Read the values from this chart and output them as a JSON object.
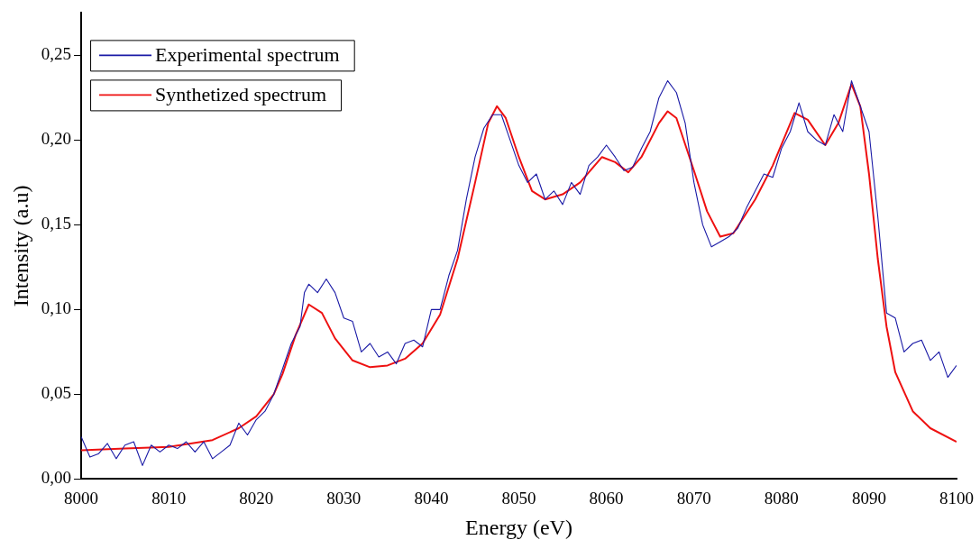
{
  "chart_data": {
    "type": "line",
    "xlabel": "Energy (eV)",
    "ylabel": "Intensity (a.u)",
    "xlim": [
      8000,
      8100
    ],
    "xticks": [
      8000,
      8010,
      8020,
      8030,
      8040,
      8050,
      8060,
      8070,
      8080,
      8090,
      8100
    ],
    "ylim": [
      0,
      0.275
    ],
    "yticks": [
      {
        "value": 0,
        "label": "0,00"
      },
      {
        "value": 0.05,
        "label": "0,05"
      },
      {
        "value": 0.1,
        "label": "0,10"
      },
      {
        "value": 0.15,
        "label": "0,15"
      },
      {
        "value": 0.2,
        "label": "0,20"
      },
      {
        "value": 0.25,
        "label": "0,25"
      }
    ],
    "grid": false,
    "legend": "top left",
    "marker": "none",
    "line_style": "solid",
    "series": [
      {
        "name": "Experimental spectrum",
        "color": "#1a1aa6",
        "x": [
          8000,
          8001,
          8002,
          8003,
          8004,
          8005,
          8006,
          8007,
          8008,
          8009,
          8010,
          8011,
          8012,
          8013,
          8014,
          8015,
          8016,
          8017,
          8018,
          8019,
          8020,
          8021,
          8022,
          8023,
          8024,
          8025,
          8025.5,
          8026,
          8027,
          8028,
          8029,
          8030,
          8031,
          8032,
          8033,
          8034,
          8035,
          8036,
          8037,
          8038,
          8039,
          8040,
          8041,
          8042,
          8043,
          8044,
          8045,
          8046,
          8047,
          8048,
          8049,
          8050,
          8051,
          8052,
          8053,
          8054,
          8055,
          8056,
          8057,
          8058,
          8059,
          8060,
          8061,
          8062,
          8063,
          8064,
          8065,
          8066,
          8067,
          8068,
          8069,
          8070,
          8071,
          8072,
          8073,
          8074,
          8075,
          8076,
          8077,
          8078,
          8079,
          8080,
          8081,
          8082,
          8083,
          8084,
          8085,
          8086,
          8087,
          8088,
          8089,
          8090,
          8091,
          8092,
          8093,
          8094,
          8095,
          8096,
          8097,
          8098,
          8099,
          8100
        ],
        "values": [
          0.025,
          0.013,
          0.015,
          0.021,
          0.012,
          0.02,
          0.022,
          0.008,
          0.02,
          0.016,
          0.02,
          0.018,
          0.022,
          0.016,
          0.022,
          0.012,
          0.016,
          0.02,
          0.033,
          0.026,
          0.035,
          0.04,
          0.05,
          0.065,
          0.08,
          0.09,
          0.11,
          0.115,
          0.11,
          0.118,
          0.11,
          0.095,
          0.093,
          0.075,
          0.08,
          0.072,
          0.075,
          0.068,
          0.08,
          0.082,
          0.078,
          0.1,
          0.1,
          0.12,
          0.135,
          0.165,
          0.19,
          0.207,
          0.215,
          0.215,
          0.2,
          0.185,
          0.175,
          0.18,
          0.165,
          0.17,
          0.162,
          0.175,
          0.168,
          0.185,
          0.19,
          0.197,
          0.19,
          0.182,
          0.184,
          0.195,
          0.205,
          0.225,
          0.235,
          0.228,
          0.21,
          0.175,
          0.15,
          0.137,
          0.14,
          0.143,
          0.148,
          0.16,
          0.17,
          0.18,
          0.178,
          0.195,
          0.205,
          0.222,
          0.205,
          0.2,
          0.197,
          0.215,
          0.205,
          0.235,
          0.22,
          0.205,
          0.155,
          0.098,
          0.095,
          0.075,
          0.08,
          0.082,
          0.07,
          0.075,
          0.06,
          0.067
        ]
      },
      {
        "name": "Synthetized spectrum",
        "color": "#ee1111",
        "x": [
          8000,
          8005,
          8010,
          8015,
          8018,
          8020,
          8022,
          8023,
          8024.5,
          8026,
          8027.5,
          8029,
          8031,
          8033,
          8035,
          8037,
          8039,
          8041,
          8043,
          8045,
          8046.5,
          8047.5,
          8048.5,
          8050,
          8051.5,
          8053,
          8055,
          8057,
          8059.5,
          8061,
          8062.5,
          8064,
          8066,
          8067,
          8068,
          8070,
          8071.5,
          8073,
          8074.5,
          8077,
          8079,
          8081.5,
          8083,
          8085,
          8086.5,
          8088,
          8089,
          8090,
          8091,
          8092,
          8093,
          8095,
          8097,
          8100
        ],
        "values": [
          0.017,
          0.018,
          0.019,
          0.023,
          0.03,
          0.037,
          0.05,
          0.062,
          0.085,
          0.103,
          0.098,
          0.083,
          0.07,
          0.066,
          0.067,
          0.071,
          0.08,
          0.097,
          0.13,
          0.175,
          0.21,
          0.22,
          0.213,
          0.19,
          0.17,
          0.165,
          0.168,
          0.175,
          0.19,
          0.187,
          0.181,
          0.19,
          0.21,
          0.217,
          0.213,
          0.182,
          0.158,
          0.143,
          0.145,
          0.165,
          0.185,
          0.216,
          0.212,
          0.197,
          0.21,
          0.233,
          0.22,
          0.18,
          0.13,
          0.09,
          0.063,
          0.04,
          0.03,
          0.022
        ]
      }
    ]
  }
}
